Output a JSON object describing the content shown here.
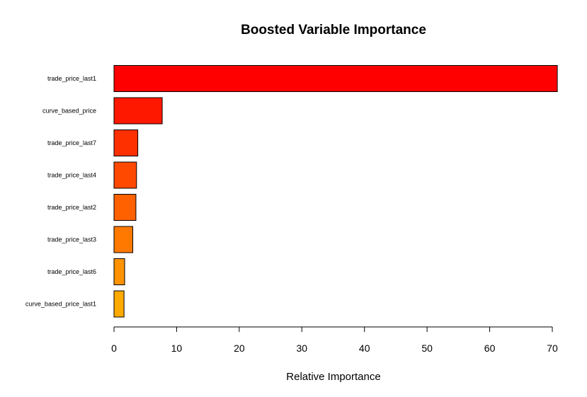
{
  "chart_data": {
    "type": "bar",
    "orientation": "horizontal",
    "title": "Boosted Variable Importance",
    "xlabel": "Relative Importance",
    "ylabel": "",
    "xlim": [
      0,
      70
    ],
    "xticks": [
      0,
      10,
      20,
      30,
      40,
      50,
      60,
      70
    ],
    "xtick_labels": [
      "0",
      "10",
      "20",
      "30",
      "40",
      "50",
      "60",
      "70"
    ],
    "categories": [
      "trade_price_last1",
      "curve_based_price",
      "trade_price_last7",
      "trade_price_last4",
      "trade_price_last2",
      "trade_price_last3",
      "trade_price_last6",
      "curve_based_price_last1"
    ],
    "values": [
      70.8,
      7.7,
      3.8,
      3.6,
      3.5,
      3.0,
      1.7,
      1.6
    ],
    "colors": [
      "#FF0000",
      "#FF1800",
      "#FF3000",
      "#FF4900",
      "#FF6100",
      "#FF7900",
      "#FF9200",
      "#FFAA00"
    ],
    "grid": false,
    "legend": "none"
  }
}
